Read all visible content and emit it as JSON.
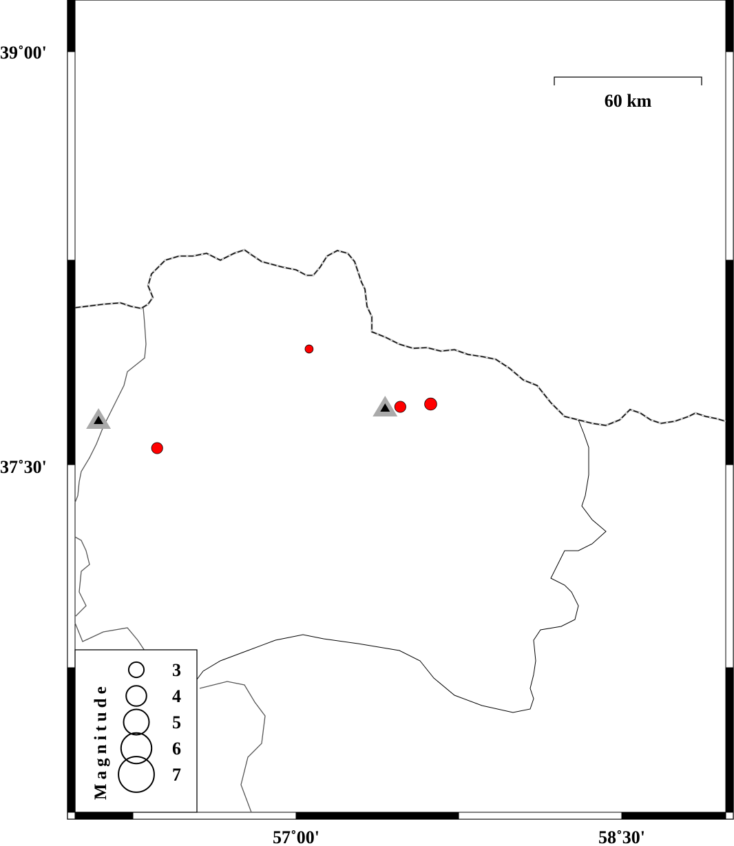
{
  "map": {
    "lat_ticks": [
      {
        "value": 39.0,
        "label": "39˚00'"
      },
      {
        "value": 37.5,
        "label": "37˚30'"
      }
    ],
    "lon_ticks": [
      {
        "value": 57.0,
        "label": "57˚00'"
      },
      {
        "value": 58.5,
        "label": "58˚30'"
      }
    ],
    "scale_bar": {
      "label": "60 km",
      "length_km": 60
    },
    "event_color": "#ff0000",
    "station_color": "#000000",
    "station_halo_color": "#aaaaaa",
    "events": [
      {
        "lon": 57.06,
        "lat": 37.92,
        "mag": 1.6
      },
      {
        "lon": 56.36,
        "lat": 37.56,
        "mag": 2.2
      },
      {
        "lon": 57.48,
        "lat": 37.71,
        "mag": 2.2
      },
      {
        "lon": 57.62,
        "lat": 37.72,
        "mag": 2.4
      }
    ],
    "stations": [
      {
        "lon": 56.09,
        "lat": 37.66,
        "icon": "triangle-icon"
      },
      {
        "lon": 57.41,
        "lat": 37.705,
        "icon": "triangle-icon"
      }
    ],
    "legend": {
      "title": "Magnitude",
      "entries": [
        {
          "mag": 3,
          "label": "3"
        },
        {
          "mag": 4,
          "label": "4"
        },
        {
          "mag": 5,
          "label": "5"
        },
        {
          "mag": 6,
          "label": "6"
        },
        {
          "mag": 7,
          "label": "7"
        }
      ]
    }
  }
}
